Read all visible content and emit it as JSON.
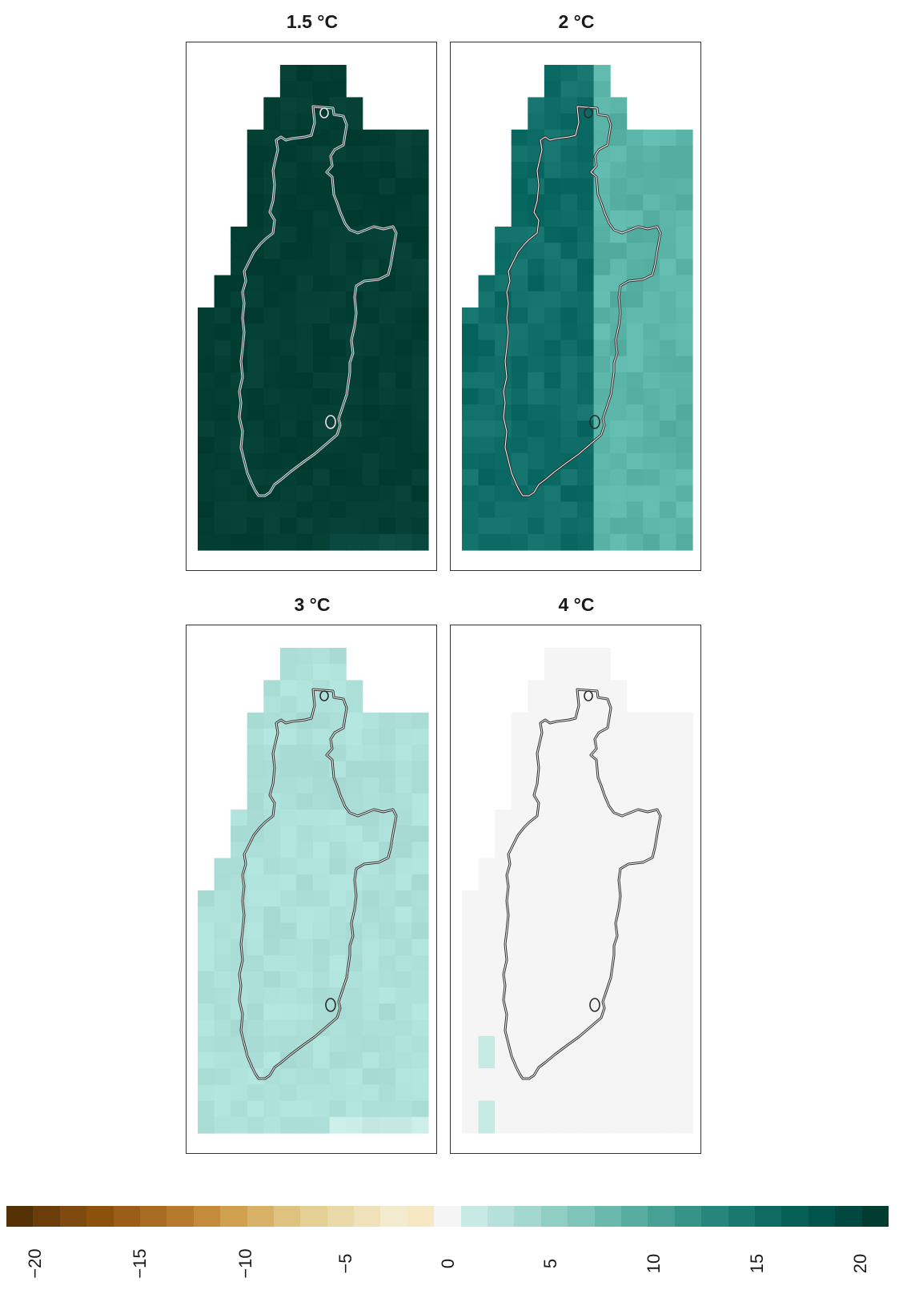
{
  "panels": [
    {
      "title": "1.5 °C",
      "base": "#033e33",
      "outline": "#f2dfe6"
    },
    {
      "title": "2 °C",
      "base": "#0e6e67",
      "outline": "#2c2c2c"
    },
    {
      "title": "3 °C",
      "base": "#ace0d8",
      "outline": "#2c2c2c"
    },
    {
      "title": "4 °C",
      "base": "#f5f5f5",
      "outline": "#2c2c2c"
    }
  ],
  "legend": {
    "ticks": [
      "−20",
      "−15",
      "−10",
      "−5",
      "0",
      "5",
      "10",
      "15",
      "20"
    ],
    "colors_neg": [
      "#543005",
      "#6a3d0b",
      "#7f4a10",
      "#8c510a",
      "#9b5d17",
      "#a76b22",
      "#b77a2c",
      "#c48c3a",
      "#cfa04e",
      "#d7b266",
      "#dec27f",
      "#e4cf94",
      "#ead9a8",
      "#efe2bb",
      "#f3ebcd",
      "#f6e8c3"
    ],
    "color_zero": "#f5f5f5",
    "colors_pos": [
      "#c7eae5",
      "#b5e1da",
      "#a3d8cf",
      "#90cec3",
      "#7ec4b8",
      "#6bb9ac",
      "#58ada0",
      "#46a094",
      "#359387",
      "#27867b",
      "#1a796f",
      "#0f6b62",
      "#066056",
      "#01544b",
      "#014840",
      "#003c30"
    ]
  }
}
